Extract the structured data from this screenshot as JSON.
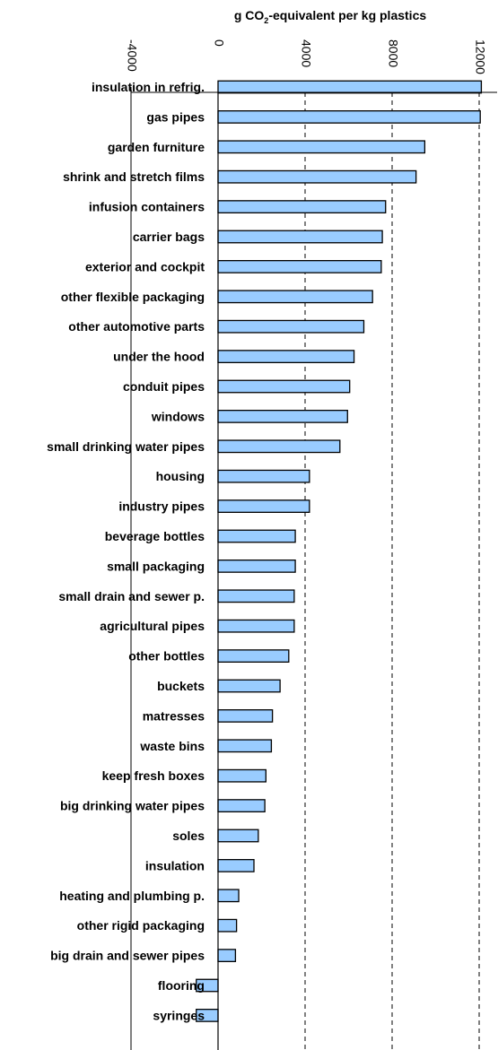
{
  "chart_data": {
    "type": "bar",
    "orientation": "horizontal",
    "title_main": "g CO",
    "title_sub": "2",
    "title_rest": "-equivalent per kg plastics",
    "xlabel": "",
    "ylabel": "",
    "xlim": [
      -4000,
      12000
    ],
    "ticks": [
      -4000,
      0,
      4000,
      8000,
      12000
    ],
    "tick_labels": [
      "-4000",
      "0",
      "4000",
      "8000",
      "12000"
    ],
    "grid": "vertical dashed",
    "bar_color": "#99ccff",
    "categories": [
      "insulation in refrig.",
      "gas pipes",
      "garden furniture",
      "shrink and stretch films",
      "infusion containers",
      "carrier bags",
      "exterior and cockpit",
      "other flexible packaging",
      "other automotive parts",
      "under the hood",
      "conduit pipes",
      "windows",
      "small drinking water pipes",
      "housing",
      "industry pipes",
      "beverage bottles",
      "small packaging",
      "small drain and sewer p.",
      "agricultural pipes",
      "other bottles",
      "buckets",
      "matresses",
      "waste bins",
      "keep fresh boxes",
      "big drinking water pipes",
      "soles",
      "insulation",
      "heating and plumbing p.",
      "other rigid packaging",
      "big drain and sewer pipes",
      "flooring",
      "syringes"
    ],
    "values": [
      12100,
      12050,
      9500,
      9100,
      7700,
      7550,
      7500,
      7100,
      6700,
      6250,
      6050,
      5950,
      5600,
      4200,
      4200,
      3550,
      3550,
      3500,
      3500,
      3250,
      2850,
      2500,
      2450,
      2200,
      2150,
      1850,
      1650,
      950,
      850,
      800,
      -1000,
      -1000
    ]
  }
}
